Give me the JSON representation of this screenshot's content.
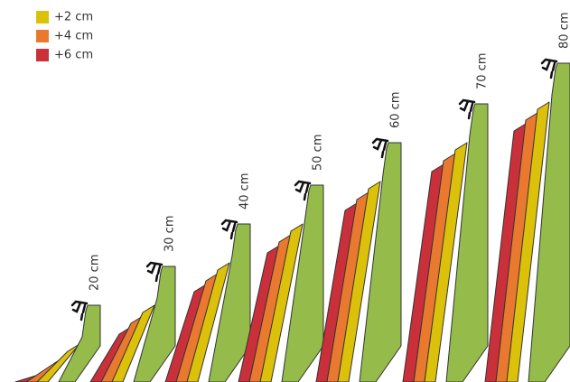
{
  "legend": [
    {
      "label": "+2 cm",
      "color": "#dcc10a"
    },
    {
      "label": "+4 cm",
      "color": "#e8792e"
    },
    {
      "label": "+6 cm",
      "color": "#c9303a"
    }
  ],
  "cliffs": [
    {
      "label": "20 cm"
    },
    {
      "label": "30 cm"
    },
    {
      "label": "40 cm"
    },
    {
      "label": "50 cm"
    },
    {
      "label": "60 cm"
    },
    {
      "label": "70 cm"
    },
    {
      "label": "80 cm"
    }
  ]
}
